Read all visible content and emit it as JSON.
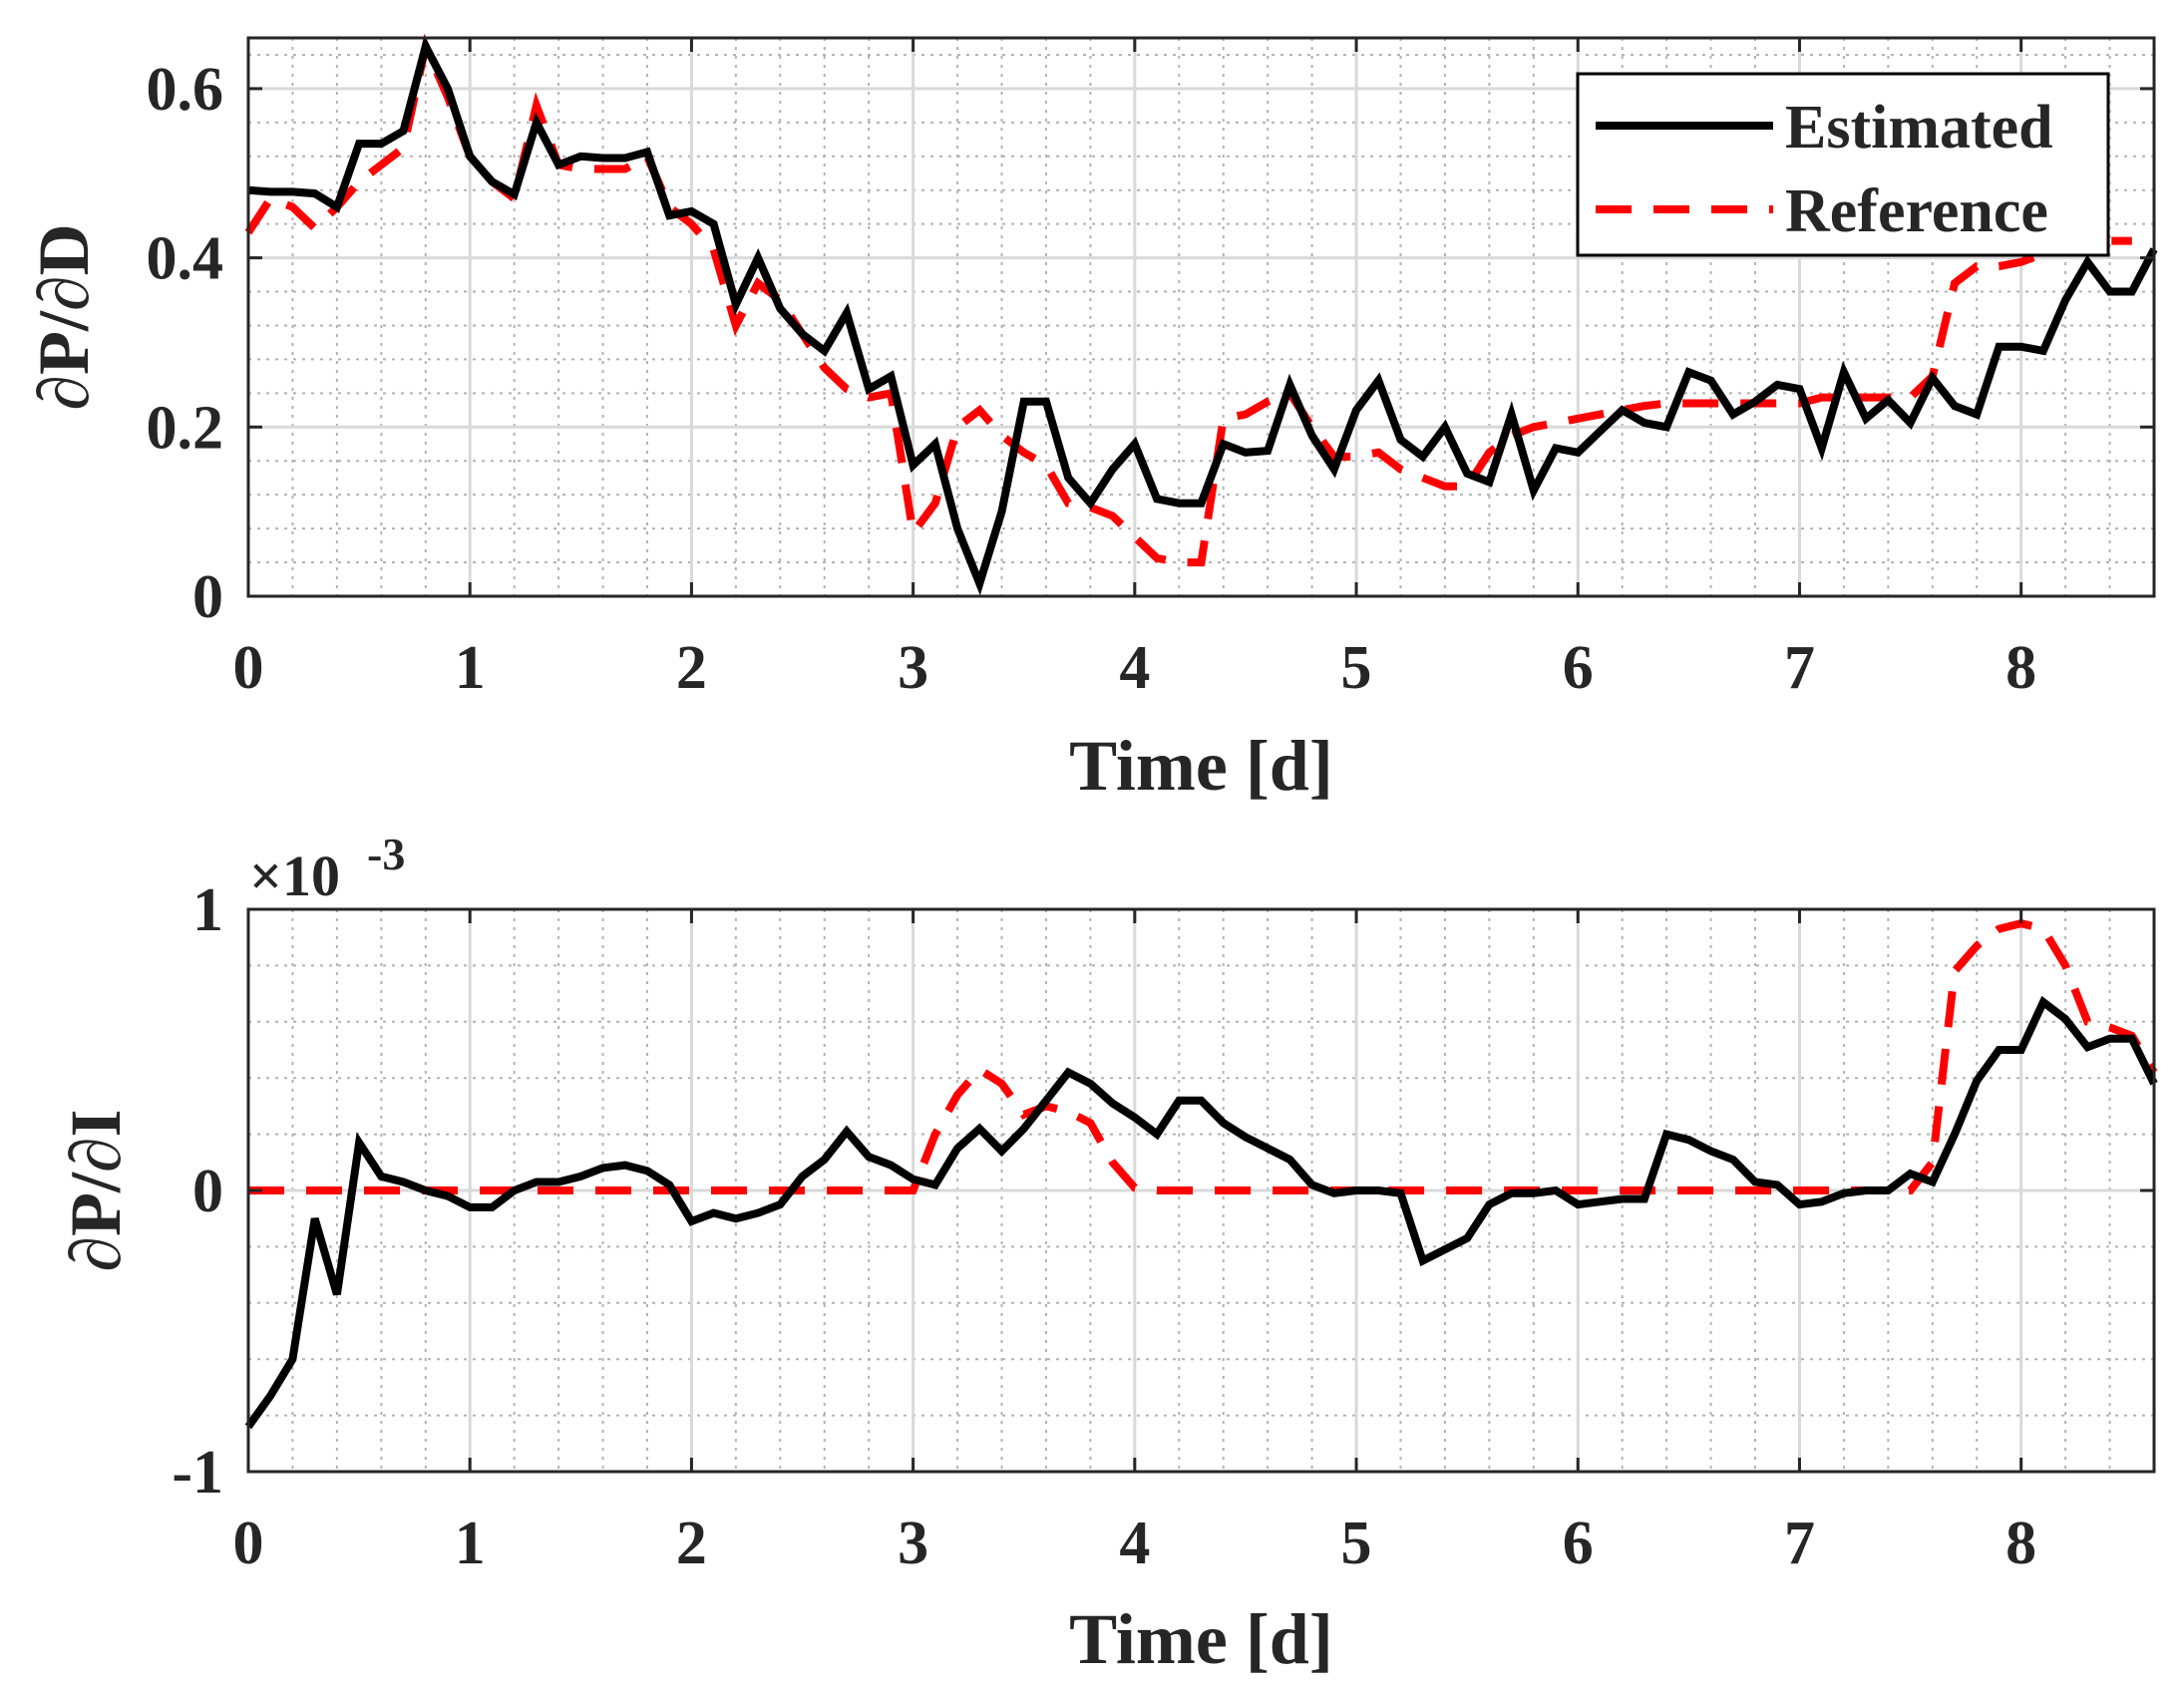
{
  "colors": {
    "estimated": "#000000",
    "reference": "#ff0000",
    "axis": "#262626",
    "grid_major": "#d9d9d9",
    "grid_minor": "#b3b3b3"
  },
  "chart_data": [
    {
      "type": "line",
      "xlabel": "Time [d]",
      "ylabel": "∂P/∂D",
      "xlim": [
        0,
        8.6
      ],
      "ylim": [
        0,
        0.66
      ],
      "xticks": [
        0,
        1,
        2,
        3,
        4,
        5,
        6,
        7,
        8
      ],
      "xtick_labels": [
        "0",
        "1",
        "2",
        "3",
        "4",
        "5",
        "6",
        "7",
        "8"
      ],
      "yticks": [
        0,
        0.2,
        0.4,
        0.6
      ],
      "ytick_labels": [
        "0",
        "0.2",
        "0.4",
        "0.6"
      ],
      "grid": true,
      "minor_grid": true,
      "legend": {
        "position": "top-right",
        "entries": [
          "Estimated",
          "Reference"
        ]
      },
      "series": [
        {
          "name": "Estimated",
          "style": "solid",
          "x": [
            0,
            0.1,
            0.2,
            0.3,
            0.4,
            0.5,
            0.6,
            0.7,
            0.8,
            0.9,
            1.0,
            1.1,
            1.2,
            1.3,
            1.4,
            1.5,
            1.6,
            1.7,
            1.8,
            1.9,
            2.0,
            2.1,
            2.2,
            2.3,
            2.4,
            2.5,
            2.6,
            2.7,
            2.8,
            2.9,
            3.0,
            3.1,
            3.2,
            3.3,
            3.4,
            3.5,
            3.6,
            3.7,
            3.8,
            3.9,
            4.0,
            4.1,
            4.2,
            4.3,
            4.4,
            4.5,
            4.6,
            4.7,
            4.8,
            4.9,
            5.0,
            5.1,
            5.2,
            5.3,
            5.4,
            5.5,
            5.6,
            5.7,
            5.8,
            5.9,
            6.0,
            6.1,
            6.2,
            6.3,
            6.4,
            6.5,
            6.6,
            6.7,
            6.8,
            6.9,
            7.0,
            7.1,
            7.2,
            7.3,
            7.4,
            7.5,
            7.6,
            7.7,
            7.8,
            7.9,
            8.0,
            8.1,
            8.2,
            8.3,
            8.4,
            8.5,
            8.6
          ],
          "y": [
            0.48,
            0.478,
            0.478,
            0.476,
            0.46,
            0.535,
            0.535,
            0.55,
            0.65,
            0.6,
            0.52,
            0.49,
            0.475,
            0.56,
            0.51,
            0.52,
            0.518,
            0.518,
            0.525,
            0.45,
            0.455,
            0.44,
            0.345,
            0.4,
            0.34,
            0.31,
            0.29,
            0.335,
            0.245,
            0.26,
            0.155,
            0.18,
            0.08,
            0.015,
            0.1,
            0.23,
            0.23,
            0.14,
            0.11,
            0.15,
            0.18,
            0.115,
            0.11,
            0.11,
            0.18,
            0.17,
            0.172,
            0.25,
            0.19,
            0.15,
            0.22,
            0.255,
            0.185,
            0.165,
            0.2,
            0.145,
            0.135,
            0.215,
            0.125,
            0.175,
            0.17,
            0.195,
            0.22,
            0.205,
            0.2,
            0.265,
            0.255,
            0.215,
            0.23,
            0.25,
            0.245,
            0.175,
            0.265,
            0.21,
            0.232,
            0.205,
            0.258,
            0.225,
            0.215,
            0.295,
            0.295,
            0.29,
            0.35,
            0.395,
            0.36,
            0.36,
            0.41
          ]
        },
        {
          "name": "Reference",
          "style": "dashed",
          "x": [
            0,
            0.1,
            0.2,
            0.3,
            0.4,
            0.5,
            0.6,
            0.7,
            0.8,
            0.9,
            1.0,
            1.1,
            1.2,
            1.3,
            1.4,
            1.5,
            1.6,
            1.7,
            1.8,
            1.9,
            2.0,
            2.1,
            2.2,
            2.3,
            2.4,
            2.5,
            2.6,
            2.7,
            2.8,
            2.9,
            3.0,
            3.1,
            3.2,
            3.3,
            3.4,
            3.5,
            3.6,
            3.7,
            3.8,
            3.9,
            4.0,
            4.1,
            4.2,
            4.3,
            4.4,
            4.5,
            4.6,
            4.7,
            4.8,
            4.9,
            5.0,
            5.1,
            5.2,
            5.3,
            5.4,
            5.5,
            5.6,
            5.7,
            5.8,
            5.9,
            6.0,
            6.1,
            6.2,
            6.3,
            6.4,
            6.5,
            6.6,
            6.7,
            6.8,
            6.9,
            7.0,
            7.1,
            7.2,
            7.3,
            7.4,
            7.5,
            7.6,
            7.7,
            7.8,
            7.9,
            8.0,
            8.1,
            8.2,
            8.3,
            8.4,
            8.5
          ],
          "y": [
            0.43,
            0.47,
            0.46,
            0.435,
            0.46,
            0.49,
            0.51,
            0.53,
            0.65,
            0.59,
            0.52,
            0.49,
            0.47,
            0.58,
            0.51,
            0.505,
            0.505,
            0.505,
            0.52,
            0.46,
            0.44,
            0.41,
            0.32,
            0.37,
            0.35,
            0.31,
            0.27,
            0.245,
            0.235,
            0.24,
            0.075,
            0.11,
            0.2,
            0.22,
            0.19,
            0.17,
            0.155,
            0.11,
            0.105,
            0.095,
            0.07,
            0.045,
            0.04,
            0.04,
            0.21,
            0.215,
            0.23,
            0.24,
            0.2,
            0.165,
            0.165,
            0.17,
            0.15,
            0.14,
            0.13,
            0.13,
            0.17,
            0.19,
            0.2,
            0.205,
            0.21,
            0.215,
            0.22,
            0.225,
            0.228,
            0.228,
            0.228,
            0.228,
            0.228,
            0.228,
            0.228,
            0.235,
            0.235,
            0.235,
            0.235,
            0.235,
            0.26,
            0.37,
            0.39,
            0.39,
            0.395,
            0.405,
            0.41,
            0.415,
            0.42,
            0.42
          ]
        }
      ]
    },
    {
      "type": "line",
      "xlabel": "Time [d]",
      "ylabel": "∂P/∂I",
      "exponent_label": "×10",
      "exponent_power": "-3",
      "xlim": [
        0,
        8.6
      ],
      "ylim": [
        -1,
        1
      ],
      "xticks": [
        0,
        1,
        2,
        3,
        4,
        5,
        6,
        7,
        8
      ],
      "xtick_labels": [
        "0",
        "1",
        "2",
        "3",
        "4",
        "5",
        "6",
        "7",
        "8"
      ],
      "yticks": [
        -1,
        0,
        1
      ],
      "ytick_labels": [
        "-1",
        "0",
        "1"
      ],
      "grid": true,
      "minor_grid": true,
      "series": [
        {
          "name": "Estimated",
          "style": "solid",
          "x": [
            0,
            0.1,
            0.2,
            0.3,
            0.4,
            0.5,
            0.6,
            0.7,
            0.8,
            0.9,
            1.0,
            1.1,
            1.2,
            1.3,
            1.4,
            1.5,
            1.6,
            1.7,
            1.8,
            1.9,
            2.0,
            2.1,
            2.2,
            2.3,
            2.4,
            2.5,
            2.6,
            2.7,
            2.8,
            2.9,
            3.0,
            3.1,
            3.2,
            3.3,
            3.4,
            3.5,
            3.6,
            3.7,
            3.8,
            3.9,
            4.0,
            4.1,
            4.2,
            4.3,
            4.4,
            4.5,
            4.6,
            4.7,
            4.8,
            4.9,
            5.0,
            5.1,
            5.2,
            5.3,
            5.4,
            5.5,
            5.6,
            5.7,
            5.8,
            5.9,
            6.0,
            6.1,
            6.2,
            6.3,
            6.4,
            6.5,
            6.6,
            6.7,
            6.8,
            6.9,
            7.0,
            7.1,
            7.2,
            7.3,
            7.4,
            7.5,
            7.6,
            7.7,
            7.8,
            7.9,
            8.0,
            8.1,
            8.2,
            8.3,
            8.4,
            8.5,
            8.6
          ],
          "y": [
            -0.84,
            -0.73,
            -0.6,
            -0.1,
            -0.37,
            0.17,
            0.05,
            0.03,
            0.0,
            -0.02,
            -0.06,
            -0.06,
            0.0,
            0.03,
            0.03,
            0.05,
            0.08,
            0.09,
            0.07,
            0.02,
            -0.11,
            -0.08,
            -0.1,
            -0.08,
            -0.05,
            0.05,
            0.11,
            0.21,
            0.12,
            0.09,
            0.04,
            0.02,
            0.15,
            0.22,
            0.14,
            0.22,
            0.32,
            0.42,
            0.38,
            0.31,
            0.26,
            0.2,
            0.32,
            0.32,
            0.24,
            0.19,
            0.15,
            0.11,
            0.02,
            -0.01,
            0.0,
            0.0,
            -0.01,
            -0.25,
            -0.21,
            -0.17,
            -0.05,
            -0.01,
            -0.01,
            0.0,
            -0.05,
            -0.04,
            -0.03,
            -0.03,
            0.2,
            0.18,
            0.14,
            0.11,
            0.03,
            0.02,
            -0.05,
            -0.04,
            -0.01,
            0.0,
            0.0,
            0.06,
            0.03,
            0.2,
            0.39,
            0.5,
            0.5,
            0.67,
            0.61,
            0.51,
            0.54,
            0.54,
            0.38
          ]
        },
        {
          "name": "Reference",
          "style": "dashed",
          "x": [
            0,
            3.0,
            3.1,
            3.2,
            3.3,
            3.4,
            3.5,
            3.6,
            3.7,
            3.8,
            3.9,
            4.0,
            4.1,
            4.2,
            7.5,
            7.6,
            7.7,
            7.8,
            7.9,
            8.0,
            8.1,
            8.2,
            8.3,
            8.4,
            8.5,
            8.6
          ],
          "y": [
            0,
            0,
            0.2,
            0.34,
            0.43,
            0.38,
            0.27,
            0.3,
            0.28,
            0.24,
            0.1,
            0.01,
            0.0,
            0.0,
            0.0,
            0.1,
            0.78,
            0.87,
            0.93,
            0.95,
            0.93,
            0.8,
            0.6,
            0.58,
            0.55,
            0.42
          ]
        }
      ]
    }
  ]
}
